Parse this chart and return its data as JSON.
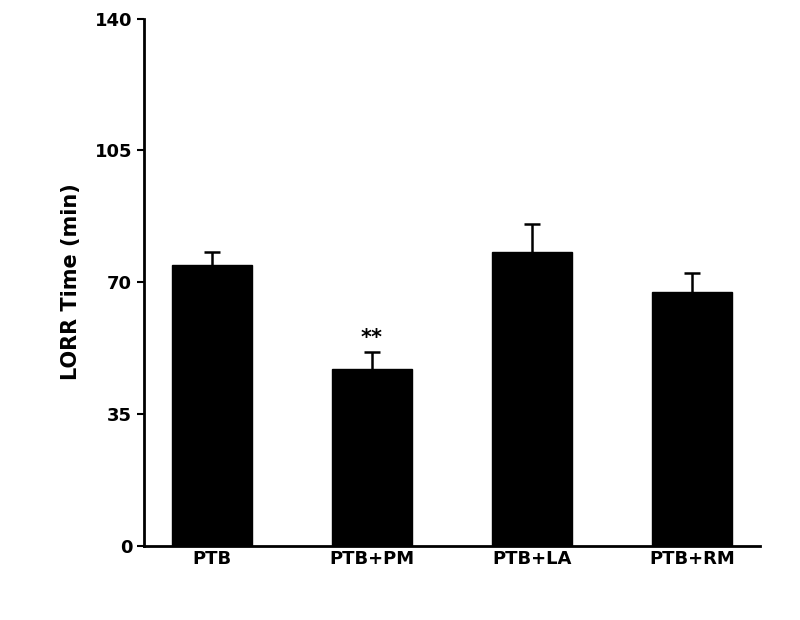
{
  "categories": [
    "PTB",
    "PTB+PM",
    "PTB+LA",
    "PTB+RM"
  ],
  "values": [
    74.5,
    47.0,
    78.0,
    67.5
  ],
  "errors": [
    3.5,
    4.5,
    7.5,
    5.0
  ],
  "bar_color": "#000000",
  "error_color": "#000000",
  "ylabel": "LORR Time (min)",
  "ylim": [
    0,
    140
  ],
  "yticks": [
    0,
    35,
    70,
    105,
    140
  ],
  "significance": {
    "index": 1,
    "label": "**"
  },
  "title": "",
  "bar_width": 0.5,
  "background_color": "#ffffff",
  "ylabel_fontsize": 15,
  "tick_fontsize": 13,
  "xlabel_fontsize": 13,
  "sig_fontsize": 15
}
